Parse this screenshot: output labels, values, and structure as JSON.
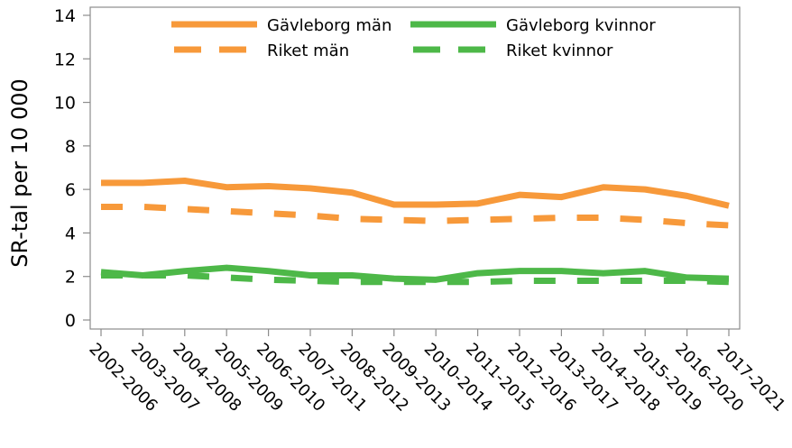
{
  "chart_data": {
    "type": "line",
    "title": "",
    "xlabel": "",
    "ylabel": "SR-tal per 10 000",
    "ylim": [
      0,
      14
    ],
    "yticks": [
      0,
      2,
      4,
      6,
      8,
      10,
      12,
      14
    ],
    "grid": false,
    "legend_placement": "top",
    "categories": [
      "2002-2006",
      "2003-2007",
      "2004-2008",
      "2005-2009",
      "2006-2010",
      "2007-2011",
      "2008-2012",
      "2009-2013",
      "2010-2014",
      "2011-2015",
      "2012-2016",
      "2013-2017",
      "2014-2018",
      "2015-2019",
      "2016-2020",
      "2017-2021"
    ],
    "series": [
      {
        "name": "Gävleborg män",
        "color": "#f7993a",
        "style": "solid",
        "values": [
          6.3,
          6.3,
          6.4,
          6.1,
          6.15,
          6.05,
          5.85,
          5.3,
          5.3,
          5.35,
          5.75,
          5.65,
          6.1,
          6.0,
          5.7,
          5.25
        ]
      },
      {
        "name": "Gävleborg kvinnor",
        "color": "#4db848",
        "style": "solid",
        "values": [
          2.2,
          2.05,
          2.25,
          2.4,
          2.25,
          2.05,
          2.05,
          1.9,
          1.85,
          2.15,
          2.25,
          2.25,
          2.15,
          2.25,
          1.95,
          1.9
        ]
      },
      {
        "name": "Riket män",
        "color": "#f7993a",
        "style": "dashed",
        "values": [
          5.2,
          5.2,
          5.1,
          5.0,
          4.9,
          4.8,
          4.65,
          4.6,
          4.55,
          4.6,
          4.65,
          4.7,
          4.7,
          4.6,
          4.45,
          4.35
        ]
      },
      {
        "name": "Riket kvinnor",
        "color": "#4db848",
        "style": "dashed",
        "values": [
          2.05,
          2.05,
          2.05,
          1.95,
          1.85,
          1.8,
          1.75,
          1.75,
          1.75,
          1.75,
          1.8,
          1.8,
          1.8,
          1.8,
          1.8,
          1.75
        ]
      }
    ]
  }
}
